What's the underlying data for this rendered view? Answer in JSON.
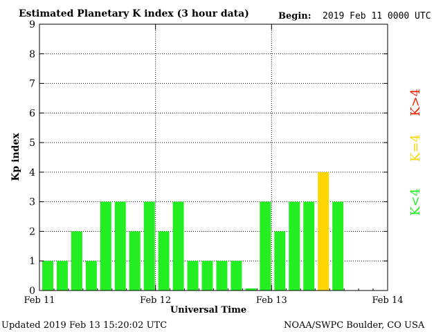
{
  "header": {
    "title": "Estimated Planetary K index (3 hour data)",
    "begin_label": "Begin:",
    "begin_value": "2019 Feb 11 0000 UTC"
  },
  "footer": {
    "updated": "Updated 2019 Feb 13 15:20:02 UTC",
    "source": "NOAA/SWPC Boulder, CO USA"
  },
  "legend": {
    "low": "K<4",
    "mid": "K=4",
    "high": "K>4"
  },
  "colors": {
    "low": "#22ee22",
    "mid": "#ffd700",
    "high": "#ee2200",
    "axis": "#000000",
    "grid": "#000000"
  },
  "chart_data": {
    "type": "bar",
    "ylabel": "Kp index",
    "xlabel": "Universal Time",
    "ylim": [
      0,
      9
    ],
    "yticks": [
      "0",
      "1",
      "2",
      "3",
      "4",
      "5",
      "6",
      "7",
      "8",
      "9"
    ],
    "xtick_labels": [
      "Feb 11",
      "Feb 12",
      "Feb 13",
      "Feb 14"
    ],
    "slots_total": 24,
    "grid": "dotted at day boundaries and each Kp integer",
    "values": [
      1,
      1,
      2,
      1,
      3,
      3,
      2,
      3,
      2,
      3,
      1,
      1,
      1,
      1,
      0.07,
      3,
      2,
      3,
      3,
      4,
      3
    ]
  }
}
